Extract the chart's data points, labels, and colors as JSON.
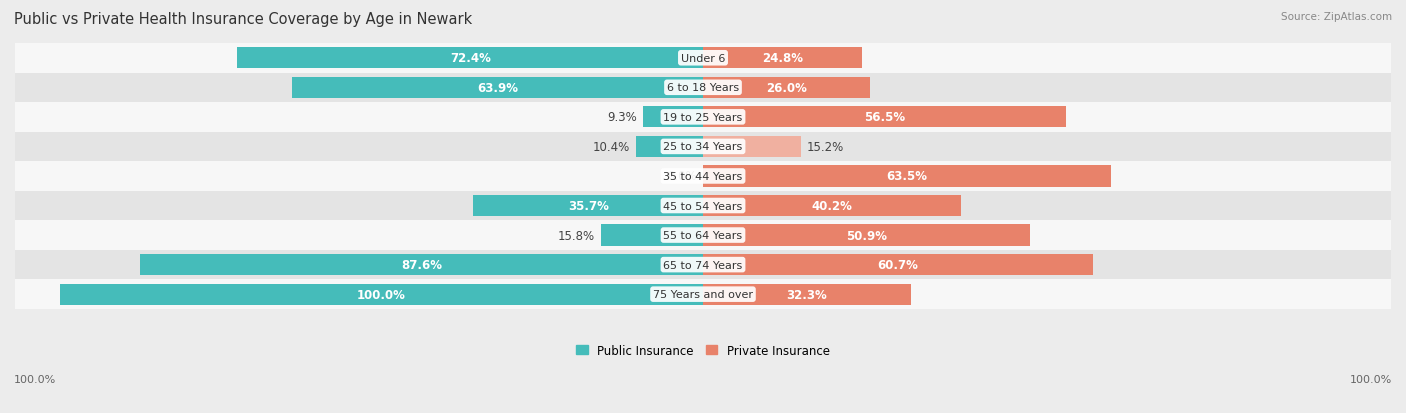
{
  "title": "Public vs Private Health Insurance Coverage by Age in Newark",
  "source": "Source: ZipAtlas.com",
  "categories": [
    "Under 6",
    "6 to 18 Years",
    "19 to 25 Years",
    "25 to 34 Years",
    "35 to 44 Years",
    "45 to 54 Years",
    "55 to 64 Years",
    "65 to 74 Years",
    "75 Years and over"
  ],
  "public_values": [
    72.4,
    63.9,
    9.3,
    10.4,
    0.0,
    35.7,
    15.8,
    87.6,
    100.0
  ],
  "private_values": [
    24.8,
    26.0,
    56.5,
    15.2,
    63.5,
    40.2,
    50.9,
    60.7,
    32.3
  ],
  "public_color": "#45bcba",
  "private_color": "#e8826a",
  "private_color_light": "#f0b0a0",
  "bg_color": "#ececec",
  "row_bg_odd": "#f7f7f7",
  "row_bg_even": "#e4e4e4",
  "title_fontsize": 10.5,
  "label_fontsize": 8.0,
  "value_fontsize": 8.5,
  "legend_fontsize": 8.5,
  "source_fontsize": 7.5,
  "inside_label_threshold": 20.0
}
